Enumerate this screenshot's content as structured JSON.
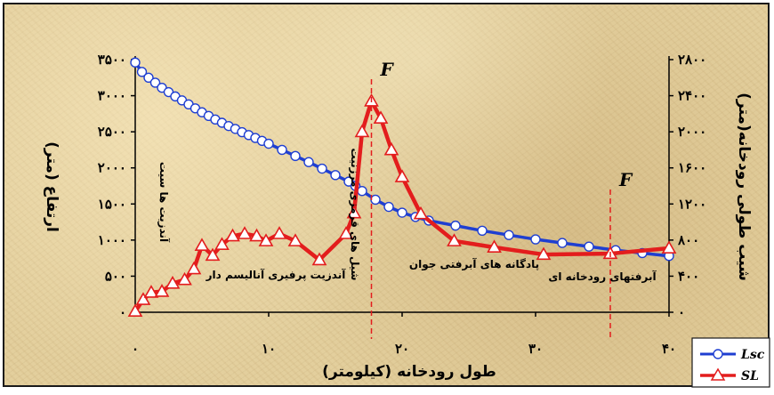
{
  "chart_data": {
    "type": "line",
    "x": [
      0,
      0.5,
      1,
      1.5,
      2,
      2.5,
      3,
      3.5,
      4,
      4.5,
      5,
      5.5,
      6,
      6.5,
      7,
      7.5,
      8,
      8.5,
      9,
      9.5,
      10,
      11,
      12,
      13,
      14,
      15,
      16,
      16.5,
      17,
      18,
      19,
      20,
      21,
      22,
      24,
      26,
      28,
      30,
      32,
      34,
      36,
      38,
      40
    ],
    "series": [
      {
        "name": "Lsc",
        "color": "#1f3fd1",
        "marker": "circle",
        "axis": "left",
        "values": [
          3460,
          3330,
          3250,
          3180,
          3110,
          3050,
          2990,
          2935,
          2880,
          2825,
          2770,
          2720,
          2670,
          2625,
          2580,
          2540,
          2495,
          2455,
          2415,
          2375,
          2335,
          2250,
          2165,
          2080,
          1990,
          1900,
          1810,
          1750,
          1680,
          1560,
          1460,
          1380,
          1320,
          1270,
          1200,
          1130,
          1070,
          1010,
          960,
          910,
          860,
          820,
          780
        ]
      },
      {
        "name": "SL",
        "color": "#e31d1d",
        "marker": "triangle",
        "axis": "right",
        "x": [
          0,
          0.6,
          1.2,
          2,
          2.8,
          3.7,
          4.4,
          5,
          5.8,
          6.5,
          7.3,
          8.2,
          9.1,
          9.8,
          10.8,
          12,
          13.8,
          15.8,
          16.4,
          17,
          17.7,
          18.4,
          19.2,
          20,
          21.4,
          23.9,
          26.9,
          30.6,
          35.6,
          40
        ],
        "values": [
          10,
          140,
          220,
          230,
          320,
          360,
          480,
          740,
          630,
          750,
          845,
          870,
          845,
          790,
          870,
          790,
          580,
          870,
          1100,
          2000,
          2340,
          2150,
          1800,
          1500,
          1090,
          790,
          720,
          640,
          650,
          710
        ]
      }
    ],
    "xlabel": "طول رودخانه (کیلومتر)",
    "ylabel": "ارتفاع (متر)",
    "y2label": "شیب طولی رودخانه(متر)",
    "xlim": [
      0,
      40
    ],
    "ylim": [
      0,
      3500
    ],
    "y2lim": [
      0,
      2800
    ],
    "xticks": [
      0,
      10,
      20,
      30,
      40
    ],
    "xtick_labels": [
      "۰",
      "۱۰",
      "۲۰",
      "۳۰",
      "۴۰"
    ],
    "yticks": [
      0,
      500,
      1000,
      1500,
      2000,
      2500,
      3000,
      3500
    ],
    "ytick_labels": [
      "۰",
      "۵۰۰",
      "۱۰۰۰",
      "۱۵۰۰",
      "۲۰۰۰",
      "۲۵۰۰",
      "۳۰۰۰",
      "۳۵۰۰"
    ],
    "y2ticks": [
      0,
      400,
      800,
      1200,
      1600,
      2000,
      2400,
      2800
    ],
    "y2tick_labels": [
      "۰",
      "۴۰۰",
      "۸۰۰",
      "۱۲۰۰",
      "۱۶۰۰",
      "۲۰۰۰",
      "۲۴۰۰",
      "۲۸۰۰"
    ],
    "grid": false,
    "legend_position": "bottom-right",
    "faults": [
      {
        "label": "F",
        "x": 17.7
      },
      {
        "label": "F",
        "x": 35.6
      }
    ],
    "annotations": {
      "andesite_trachy": "آندزیت ها سیت",
      "andesite_porphyry": "آندزیت پرفیری آنالیسم دار",
      "hebrew_conglomerate": "شیل های قرمزی مرزنیت",
      "young_terraces": "پادگانه های آبرفتی جوان",
      "river_alluvium": "آبرفتهای رودخانه ای"
    },
    "colors": {
      "background": "#e3cf9d",
      "lsc": "#1f3fd1",
      "sl": "#e31d1d"
    }
  }
}
